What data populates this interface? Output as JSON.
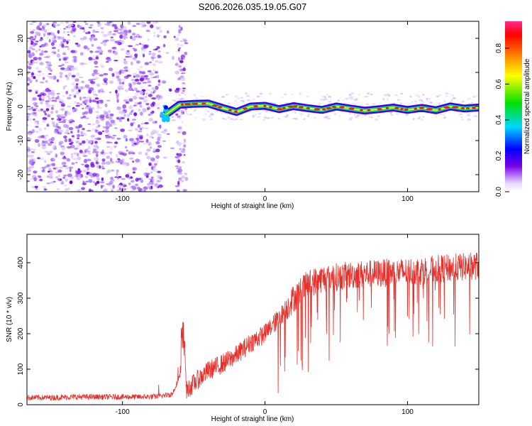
{
  "title": "S206.2026.035.19.05.G07",
  "chart_data": [
    {
      "type": "heatmap",
      "name": "spectrogram",
      "xlabel": "Height of straight line (km)",
      "ylabel": "Frequency (Hz)",
      "xlim": [
        -167,
        150
      ],
      "ylim": [
        -25,
        25
      ],
      "xticks": [
        -100,
        0,
        100
      ],
      "yticks": [
        -20,
        -10,
        0,
        10,
        20
      ],
      "colorbar": {
        "label": "Normalized spectral amplitude",
        "range": [
          0,
          0.95
        ],
        "ticks": [
          0,
          0.2,
          0.4,
          0.6,
          0.8
        ],
        "tick_labels": [
          "0.0",
          "0.2",
          "0.4",
          "0.6",
          "0.8"
        ]
      },
      "features": {
        "noise_region_x": [
          -167,
          -55
        ],
        "signal_start_x": -70,
        "signal_freq_hz": 0,
        "signal_band_hz": [
          -2,
          2
        ]
      },
      "trace_points": [
        {
          "x": -70,
          "y": -2.5
        },
        {
          "x": -60,
          "y": 0.5
        },
        {
          "x": -50,
          "y": 0.8
        },
        {
          "x": -40,
          "y": 0.9
        },
        {
          "x": -30,
          "y": -0.4
        },
        {
          "x": -20,
          "y": -1.6
        },
        {
          "x": -10,
          "y": 0.0
        },
        {
          "x": 0,
          "y": 0.2
        },
        {
          "x": 10,
          "y": -0.8
        },
        {
          "x": 20,
          "y": 0.1
        },
        {
          "x": 30,
          "y": -0.5
        },
        {
          "x": 40,
          "y": -1.0
        },
        {
          "x": 50,
          "y": 0.0
        },
        {
          "x": 60,
          "y": -0.6
        },
        {
          "x": 70,
          "y": -1.2
        },
        {
          "x": 80,
          "y": -0.8
        },
        {
          "x": 90,
          "y": -0.3
        },
        {
          "x": 100,
          "y": -1.0
        },
        {
          "x": 110,
          "y": -0.4
        },
        {
          "x": 120,
          "y": -1.1
        },
        {
          "x": 130,
          "y": 0.0
        },
        {
          "x": 140,
          "y": -0.6
        },
        {
          "x": 150,
          "y": -0.3
        }
      ]
    },
    {
      "type": "line",
      "name": "snr",
      "xlabel": "Height of straight line (km)",
      "ylabel": "SNR (10 * v/v)",
      "xlim": [
        -167,
        150
      ],
      "ylim": [
        0,
        480
      ],
      "xticks": [
        -100,
        0,
        100
      ],
      "yticks": [
        0,
        100,
        200,
        300,
        400
      ],
      "color": "#e8302a",
      "series": [
        {
          "name": "SNR",
          "x": [
            -167,
            -150,
            -130,
            -110,
            -90,
            -75,
            -65,
            -58,
            -57,
            -55,
            -50,
            -40,
            -30,
            -20,
            -10,
            0,
            10,
            20,
            30,
            40,
            50,
            60,
            70,
            80,
            90,
            100,
            110,
            120,
            130,
            140,
            150
          ],
          "y": [
            20,
            20,
            22,
            22,
            22,
            23,
            30,
            100,
            160,
            40,
            60,
            95,
            115,
            140,
            175,
            200,
            245,
            300,
            340,
            355,
            360,
            365,
            368,
            370,
            372,
            375,
            378,
            382,
            385,
            388,
            392
          ]
        }
      ]
    }
  ]
}
